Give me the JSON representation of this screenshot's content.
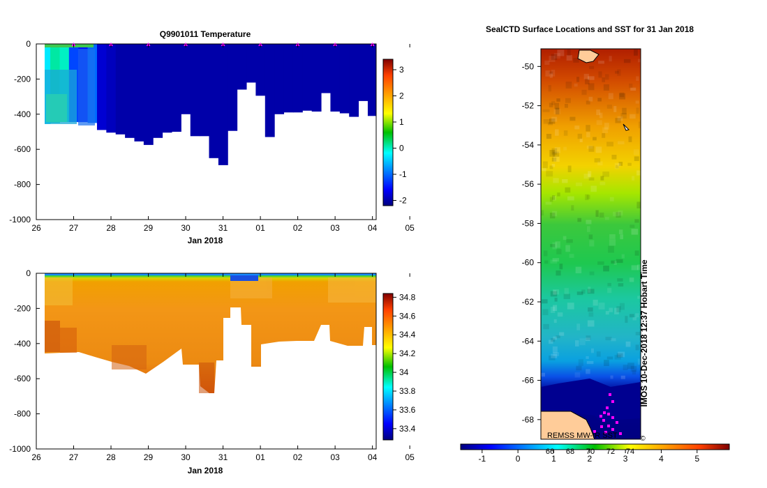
{
  "chart_data": [
    {
      "type": "heatmap",
      "panel": "top-left",
      "title": "Q9901011  Temperature",
      "xlabel": "Jan 2018",
      "ylabel": "",
      "x_tick_labels": [
        "26",
        "27",
        "28",
        "29",
        "30",
        "31",
        "01",
        "02",
        "03",
        "04",
        "05"
      ],
      "y_tick_labels": [
        "0",
        "-200",
        "-400",
        "-600",
        "-800",
        "-1000"
      ],
      "ylim": [
        -1000,
        0
      ],
      "colorbar": {
        "min": -2.2,
        "max": 3.4,
        "tick_labels": [
          "3",
          "2",
          "1",
          "0",
          "-1",
          "-2"
        ]
      },
      "surface_markers": "magenta triangles at profile times",
      "profiles": [
        {
          "day": 26.25,
          "depth": -455,
          "value": -0.3
        },
        {
          "day": 26.5,
          "depth": -450,
          "value": 0.1
        },
        {
          "day": 26.75,
          "depth": -445,
          "value": 0.0
        },
        {
          "day": 27.0,
          "depth": -445,
          "value": -1.2
        },
        {
          "day": 27.25,
          "depth": -445,
          "value": -1.5
        },
        {
          "day": 27.5,
          "depth": -450,
          "value": -1.0
        },
        {
          "day": 27.75,
          "depth": -490,
          "value": -1.8
        },
        {
          "day": 28.0,
          "depth": -505,
          "value": -1.9
        },
        {
          "day": 28.25,
          "depth": -515,
          "value": -2.0
        },
        {
          "day": 28.5,
          "depth": -535,
          "value": -2.0
        },
        {
          "day": 28.75,
          "depth": -555,
          "value": -2.0
        },
        {
          "day": 29.0,
          "depth": -575,
          "value": -2.0
        },
        {
          "day": 29.25,
          "depth": -535,
          "value": -2.0
        },
        {
          "day": 29.5,
          "depth": -505,
          "value": -2.0
        },
        {
          "day": 29.75,
          "depth": -500,
          "value": -2.0
        },
        {
          "day": 30.0,
          "depth": -400,
          "value": -2.0
        },
        {
          "day": 30.25,
          "depth": -525,
          "value": -2.0
        },
        {
          "day": 30.5,
          "depth": -525,
          "value": -2.0
        },
        {
          "day": 30.75,
          "depth": -650,
          "value": -2.0
        },
        {
          "day": 31.0,
          "depth": -690,
          "value": -2.0
        },
        {
          "day": 31.25,
          "depth": -495,
          "value": -2.0
        },
        {
          "day": 31.5,
          "depth": -260,
          "value": -2.0
        },
        {
          "day": 31.75,
          "depth": -220,
          "value": -2.0
        },
        {
          "day": 32.0,
          "depth": -295,
          "value": -2.0
        },
        {
          "day": 32.25,
          "depth": -530,
          "value": -2.0
        },
        {
          "day": 32.5,
          "depth": -400,
          "value": -2.0
        },
        {
          "day": 32.75,
          "depth": -390,
          "value": -2.0
        },
        {
          "day": 33.0,
          "depth": -390,
          "value": -2.0
        },
        {
          "day": 33.25,
          "depth": -380,
          "value": -2.0
        },
        {
          "day": 33.5,
          "depth": -385,
          "value": -2.0
        },
        {
          "day": 33.75,
          "depth": -280,
          "value": -2.0
        },
        {
          "day": 34.0,
          "depth": -385,
          "value": -2.0
        },
        {
          "day": 34.25,
          "depth": -395,
          "value": -2.0
        },
        {
          "day": 34.5,
          "depth": -415,
          "value": -2.0
        },
        {
          "day": 34.75,
          "depth": -325,
          "value": -2.0
        },
        {
          "day": 35.0,
          "depth": -410,
          "value": -2.0
        }
      ]
    },
    {
      "type": "heatmap",
      "panel": "bottom-left",
      "title": "",
      "xlabel": "Jan 2018",
      "ylabel": "",
      "x_tick_labels": [
        "26",
        "27",
        "28",
        "29",
        "30",
        "31",
        "01",
        "02",
        "03",
        "04",
        "05"
      ],
      "y_tick_labels": [
        "0",
        "-200",
        "-400",
        "-600",
        "-800",
        "-1000"
      ],
      "ylim": [
        -1000,
        0
      ],
      "colorbar": {
        "min": 33.28,
        "max": 34.84,
        "tick_labels": [
          "34.8",
          "34.6",
          "34.4",
          "34.2",
          "34",
          "33.8",
          "33.6",
          "33.4"
        ]
      }
    },
    {
      "type": "heatmap",
      "panel": "right",
      "title": "SealCTD Surface Locations and SST for 31 Jan 2018",
      "ylabel": "",
      "y_tick_labels": [
        "-50",
        "-52",
        "-54",
        "-56",
        "-58",
        "-60",
        "-62",
        "-64",
        "-66",
        "-68"
      ],
      "ylim": [
        -69.0,
        -49.1
      ],
      "colorbar": {
        "min": -1.6,
        "max": 5.9,
        "tick_labels": [
          "-1",
          "0",
          "1",
          "2",
          "3",
          "4",
          "5"
        ]
      },
      "colorbar_overlay_labels": [
        "66",
        "68",
        "70",
        "72",
        "74"
      ],
      "annotations": [
        "REMSS MW-IR SST",
        "IMOS 10-Dec-2018 12:37 Hobart Time",
        "©"
      ]
    }
  ]
}
